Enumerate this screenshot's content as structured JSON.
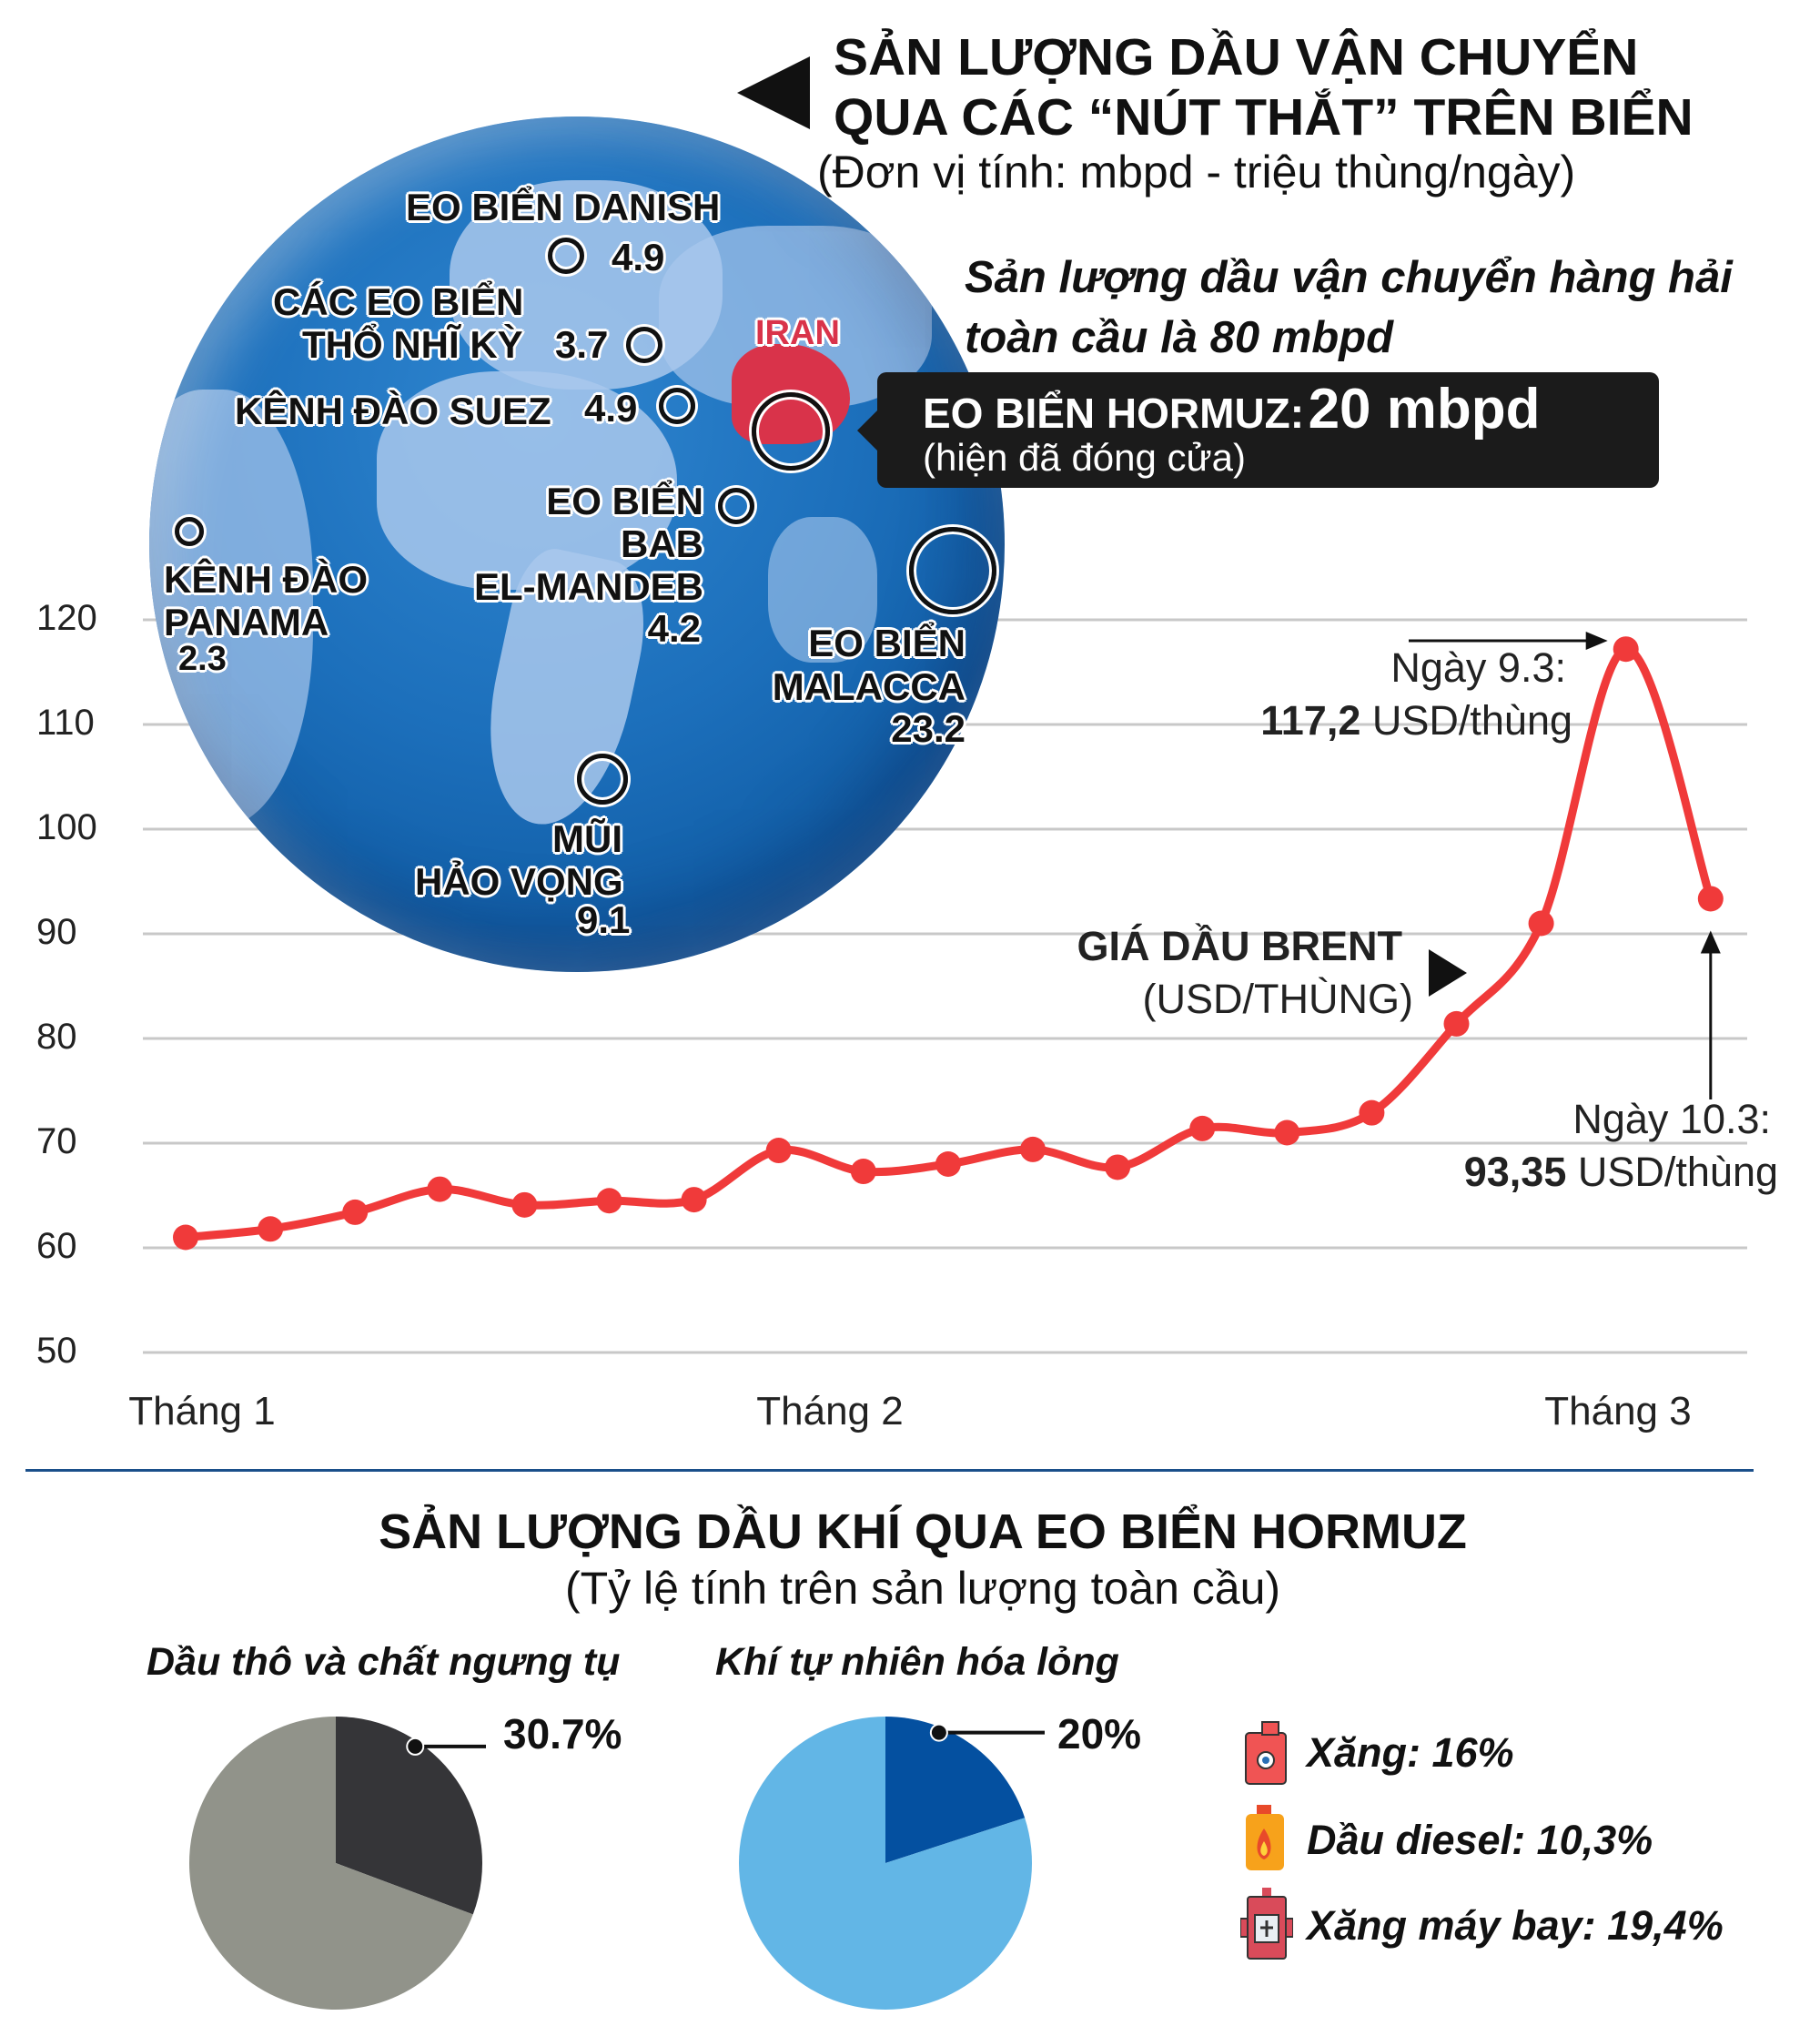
{
  "header": {
    "title_line1": "SẢN LƯỢNG DẦU VẬN CHUYỂN",
    "title_line2": "QUA CÁC “NÚT THẮT” TRÊN BIỂN",
    "unit_note": "(Đơn vị tính: mbpd - triệu thùng/ngày)",
    "global_note_line1": "Sản lượng dầu vận chuyển hàng hải",
    "global_note_line2": "toàn cầu là 80 mbpd"
  },
  "hormuz_box": {
    "label": "EO BIỂN HORMUZ:",
    "value": "20 mbpd",
    "status": "(hiện đã đóng cửa)"
  },
  "globe": {
    "iran_label": "IRAN",
    "chokepoints": [
      {
        "name_line1": "EO BIỂN DANISH",
        "value": "4.9"
      },
      {
        "name_line1": "CÁC EO BIỂN",
        "name_line2": "THỔ NHĨ KỲ",
        "value": "3.7"
      },
      {
        "name_line1": "KÊNH ĐÀO SUEZ",
        "value": "4.9"
      },
      {
        "name_line1": "EO BIỂN",
        "name_line2": "BAB",
        "name_line3": "EL-MANDEB",
        "value": "4.2"
      },
      {
        "name_line1": "KÊNH ĐÀO",
        "name_line2": "PANAMA",
        "value": "2.3"
      },
      {
        "name_line1": "EO BIỂN",
        "name_line2": "MALACCA",
        "value": "23.2"
      },
      {
        "name_line1": "MŨI",
        "name_line2": "HẢO VỌNG",
        "value": "9.1"
      }
    ]
  },
  "chart_data": [
    {
      "type": "line",
      "series_label_line1": "GIÁ DẦU BRENT",
      "series_label_line2": "(USD/THÙNG)",
      "x_labels": [
        "Tháng 1",
        "Tháng 2",
        "Tháng 3"
      ],
      "values": [
        61.0,
        61.8,
        63.4,
        65.6,
        64.1,
        64.5,
        64.6,
        69.3,
        67.3,
        68.0,
        69.4,
        67.7,
        71.4,
        71.0,
        72.9,
        81.4,
        91.0,
        117.2,
        93.35
      ],
      "yticks": [
        50,
        60,
        70,
        80,
        90,
        100,
        110,
        120
      ],
      "ylim": [
        50,
        120
      ],
      "grid": true,
      "color": "#f03a3a",
      "annotations": [
        {
          "line1": "Ngày 9.3:",
          "value": "117,2",
          "unit": " USD/thùng"
        },
        {
          "line1": "Ngày 10.3:",
          "value": "93,35",
          "unit": " USD/thùng"
        }
      ]
    },
    {
      "type": "pie",
      "title": "Dầu thô và chất ngưng tụ",
      "values": [
        30.7,
        69.3
      ],
      "label": "30.7%",
      "colors": [
        "#353538",
        "#91938a"
      ]
    },
    {
      "type": "pie",
      "title": "Khí tự nhiên hóa lỏng",
      "values": [
        20,
        80
      ],
      "label": "20%",
      "colors": [
        "#0450a0",
        "#62b6e6"
      ]
    }
  ],
  "section2": {
    "title": "SẢN LƯỢNG DẦU KHÍ QUA EO BIỂN HORMUZ",
    "subtitle": "(Tỷ lệ tính trên sản lượng toàn cầu)"
  },
  "legend": [
    {
      "icon": "gasoline-can-icon",
      "label": "Xăng: 16%"
    },
    {
      "icon": "diesel-bottle-icon",
      "label": "Dầu diesel: 10,3%"
    },
    {
      "icon": "jet-fuel-tank-icon",
      "label": "Xăng máy bay: 19,4%"
    }
  ]
}
